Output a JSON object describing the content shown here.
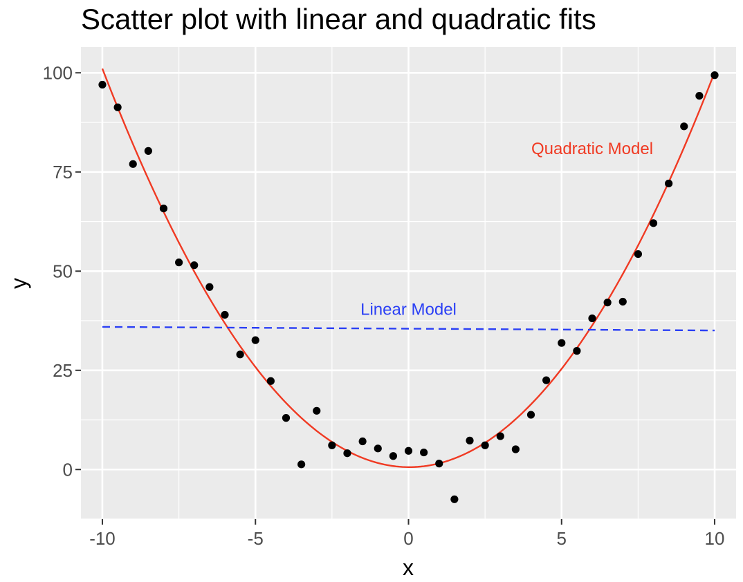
{
  "chart_data": {
    "type": "scatter",
    "title": "Scatter plot with linear and quadratic fits",
    "xlabel": "x",
    "ylabel": "y",
    "xlim": [
      -10.7,
      10.7
    ],
    "ylim": [
      -12.5,
      106.5
    ],
    "x_ticks": [
      -10,
      -5,
      0,
      5,
      10
    ],
    "y_ticks": [
      0,
      25,
      50,
      75,
      100
    ],
    "x_tick_labels": [
      "-10",
      "-5",
      "0",
      "5",
      "10"
    ],
    "y_tick_labels": [
      "0",
      "25",
      "50",
      "75",
      "100"
    ],
    "grid": true,
    "background_color": "#ebebeb",
    "gridline_color": "#ffffff",
    "points": {
      "color": "#000000",
      "x": [
        -10,
        -9.5,
        -9,
        -8.5,
        -8,
        -7.5,
        -7,
        -6.5,
        -6,
        -5.5,
        -5,
        -4.5,
        -4,
        -3.5,
        -3,
        -2.5,
        -2,
        -1.5,
        -1,
        -0.5,
        0,
        0.5,
        1,
        1.5,
        2,
        2.5,
        3,
        3.5,
        4,
        4.5,
        5,
        5.5,
        6,
        6.5,
        7,
        7.5,
        8,
        8.5,
        9,
        9.5,
        10
      ],
      "y": [
        97,
        91.3,
        77,
        80.3,
        65.8,
        52.2,
        51.5,
        46,
        39,
        29,
        32.6,
        22.3,
        13,
        1.3,
        14.8,
        6.1,
        4.1,
        7.1,
        5.3,
        3.4,
        4.7,
        4.3,
        1.5,
        -7.5,
        7.3,
        6.1,
        8.4,
        5.1,
        13.8,
        22.5,
        31.9,
        29.9,
        38.1,
        42.1,
        42.3,
        54.3,
        62.1,
        72.1,
        86.5,
        94.2,
        99.4
      ]
    },
    "linear_fit": {
      "intercept": 35.5,
      "slope": -0.045,
      "x_range": [
        -10,
        10
      ],
      "color": "#2a3ff5",
      "dash": true
    },
    "quadratic_fit": {
      "a": 1.0,
      "b": -0.045,
      "c": 0.6,
      "x_range": [
        -10,
        10
      ],
      "color": "#f03a23"
    },
    "annotations": [
      {
        "text": "Quadratic Model",
        "x": 6,
        "y": 79.5,
        "color": "#f03a23"
      },
      {
        "text": "Linear Model",
        "x": 0,
        "y": 39,
        "color": "#2a3ff5"
      }
    ]
  }
}
